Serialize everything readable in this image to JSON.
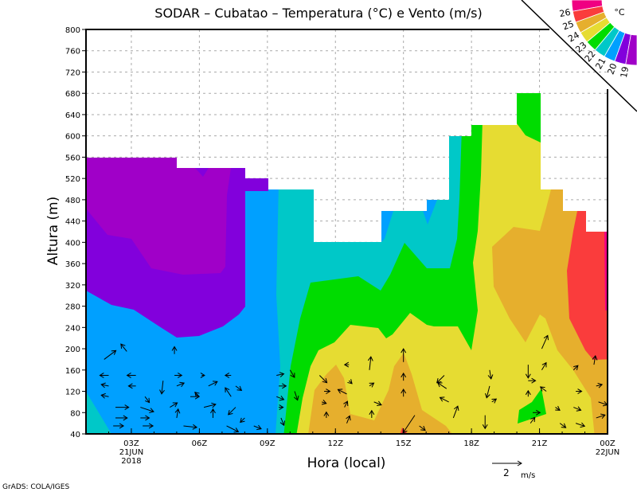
{
  "chart_data": {
    "type": "heatmap",
    "title": "SODAR – Cubatao – Temperatura (°C) e Vento (m/s)",
    "xlabel": "Hora (local)",
    "ylabel": "Altura (m)",
    "ylim": [
      40,
      800
    ],
    "yticks": [
      40,
      80,
      120,
      160,
      200,
      240,
      280,
      320,
      360,
      400,
      440,
      480,
      520,
      560,
      600,
      640,
      680,
      720,
      760,
      800
    ],
    "xlim_hours": [
      1,
      24
    ],
    "xticks": [
      {
        "hour": 3,
        "label": "03Z",
        "sub1": "21JUN",
        "sub2": "2018"
      },
      {
        "hour": 6,
        "label": "06Z"
      },
      {
        "hour": 9,
        "label": "09Z"
      },
      {
        "hour": 12,
        "label": "12Z"
      },
      {
        "hour": 15,
        "label": "15Z"
      },
      {
        "hour": 18,
        "label": "18Z"
      },
      {
        "hour": 21,
        "label": "21Z"
      },
      {
        "hour": 24,
        "label": "00Z",
        "sub1": "22JUN"
      }
    ],
    "grid": true,
    "colorbar": {
      "unit": "°C",
      "placement": "top-right",
      "labels": [
        "26",
        "25",
        "24",
        "23",
        "22",
        "21",
        "20",
        "19"
      ],
      "colors": [
        "#F00082",
        "#FA3C3C",
        "#E6AF2D",
        "#E6DC32",
        "#00DC00",
        "#00C8C8",
        "#00A0FF",
        "#8200DC",
        "#A000C8"
      ]
    },
    "wind_reference": {
      "value": "2",
      "unit": "m/s",
      "speed": 2
    },
    "wind_vectors": [
      [
        1.8,
        180,
        0.8,
        0.6
      ],
      [
        2.8,
        195,
        -0.4,
        0.5
      ],
      [
        2.0,
        150,
        -0.6,
        0.0
      ],
      [
        3.2,
        150,
        -0.6,
        0.0
      ],
      [
        2.0,
        130,
        -0.5,
        0.1
      ],
      [
        3.2,
        130,
        -0.5,
        0
      ],
      [
        2.0,
        110,
        -0.5,
        0.1
      ],
      [
        3.6,
        110,
        0.3,
        -0.4
      ],
      [
        2.3,
        90,
        0.9,
        0
      ],
      [
        3.4,
        90,
        0.9,
        -0.3
      ],
      [
        2.3,
        70,
        0.8,
        0
      ],
      [
        3.4,
        70,
        0.6,
        0
      ],
      [
        2.2,
        55,
        0.7,
        0
      ],
      [
        3.5,
        55,
        0.7,
        0
      ],
      [
        4.9,
        190,
        0,
        0.5
      ],
      [
        4.9,
        150,
        0.5,
        0
      ],
      [
        5.0,
        130,
        0.5,
        0.2
      ],
      [
        5.6,
        110,
        0.6,
        0
      ],
      [
        4.7,
        90,
        0.5,
        0.3
      ],
      [
        5.0,
        70,
        0.1,
        0.6
      ],
      [
        5.3,
        55,
        0.9,
        -0.1
      ],
      [
        4.4,
        140,
        -0.1,
        -0.9
      ],
      [
        6.1,
        150,
        0.2,
        0
      ],
      [
        6.4,
        130,
        0.6,
        0.3
      ],
      [
        6.0,
        110,
        -0.3,
        0.3
      ],
      [
        6.2,
        90,
        0.8,
        0.2
      ],
      [
        6.6,
        70,
        0.0,
        0.6
      ],
      [
        7.2,
        55,
        0.8,
        -0.4
      ],
      [
        7.4,
        150,
        -0.4,
        0
      ],
      [
        7.6,
        130,
        0.4,
        -0.3
      ],
      [
        7.4,
        110,
        -0.4,
        0.6
      ],
      [
        7.6,
        90,
        -0.5,
        -0.5
      ],
      [
        8.0,
        70,
        -0.3,
        -0.3
      ],
      [
        8.4,
        55,
        0.5,
        -0.2
      ],
      [
        9.4,
        150,
        0.5,
        0.1
      ],
      [
        9.5,
        130,
        0.5,
        0
      ],
      [
        9.4,
        110,
        0.5,
        -0.2
      ],
      [
        9.5,
        90,
        0.3,
        0
      ],
      [
        9.6,
        70,
        0.2,
        -0.5
      ],
      [
        10.0,
        160,
        0.3,
        -0.5
      ],
      [
        10.2,
        120,
        0.2,
        -0.6
      ],
      [
        11.3,
        150,
        0.5,
        -0.5
      ],
      [
        11.5,
        120,
        0.4,
        0
      ],
      [
        11.4,
        100,
        0.3,
        -0.1
      ],
      [
        11.6,
        70,
        0,
        0.4
      ],
      [
        12.6,
        170,
        -0.3,
        0
      ],
      [
        12.6,
        140,
        0.2,
        -0.2
      ],
      [
        12.5,
        115,
        -0.6,
        0.3
      ],
      [
        12.4,
        90,
        0.2,
        0.4
      ],
      [
        12.5,
        60,
        0.2,
        0.5
      ],
      [
        13.5,
        160,
        0.1,
        0.9
      ],
      [
        13.5,
        130,
        0.3,
        0.2
      ],
      [
        13.7,
        100,
        0.5,
        -0.2
      ],
      [
        13.6,
        70,
        0.0,
        0.5
      ],
      [
        15.0,
        175,
        0,
        0.9
      ],
      [
        15.0,
        140,
        0,
        0.5
      ],
      [
        15.0,
        110,
        0,
        0.5
      ],
      [
        15.5,
        75,
        -0.8,
        -1.2
      ],
      [
        15.7,
        55,
        0.4,
        -0.3
      ],
      [
        16.8,
        150,
        -0.5,
        -0.5
      ],
      [
        16.9,
        125,
        -0.6,
        0.4
      ],
      [
        17.0,
        100,
        -0.6,
        0.3
      ],
      [
        17.2,
        70,
        0.3,
        0.8
      ],
      [
        18.8,
        160,
        0.1,
        -0.6
      ],
      [
        18.8,
        130,
        -0.2,
        -0.8
      ],
      [
        18.9,
        100,
        0.3,
        0.2
      ],
      [
        18.6,
        75,
        0.0,
        -0.9
      ],
      [
        20.5,
        170,
        0,
        -0.9
      ],
      [
        20.5,
        140,
        0.5,
        0
      ],
      [
        20.5,
        110,
        0,
        0.4
      ],
      [
        20.7,
        80,
        0.5,
        0
      ],
      [
        20.6,
        60,
        0.3,
        0.4
      ],
      [
        21.1,
        200,
        0.4,
        0.9
      ],
      [
        21.1,
        160,
        0.3,
        0.5
      ],
      [
        21.3,
        120,
        -0.4,
        0.3
      ],
      [
        21.7,
        90,
        0.3,
        -0.2
      ],
      [
        21.9,
        60,
        0.4,
        -0.3
      ],
      [
        22.5,
        160,
        0.3,
        0.3
      ],
      [
        22.6,
        120,
        0.4,
        0
      ],
      [
        22.5,
        90,
        0.5,
        -0.2
      ],
      [
        22.6,
        60,
        0.6,
        -0.2
      ],
      [
        23.4,
        170,
        0.1,
        0.6
      ],
      [
        23.5,
        130,
        0.4,
        0.1
      ],
      [
        23.6,
        100,
        0.6,
        -0.2
      ],
      [
        23.5,
        70,
        0.6,
        0.2
      ]
    ]
  },
  "footer": "GrADS: COLA/IGES"
}
